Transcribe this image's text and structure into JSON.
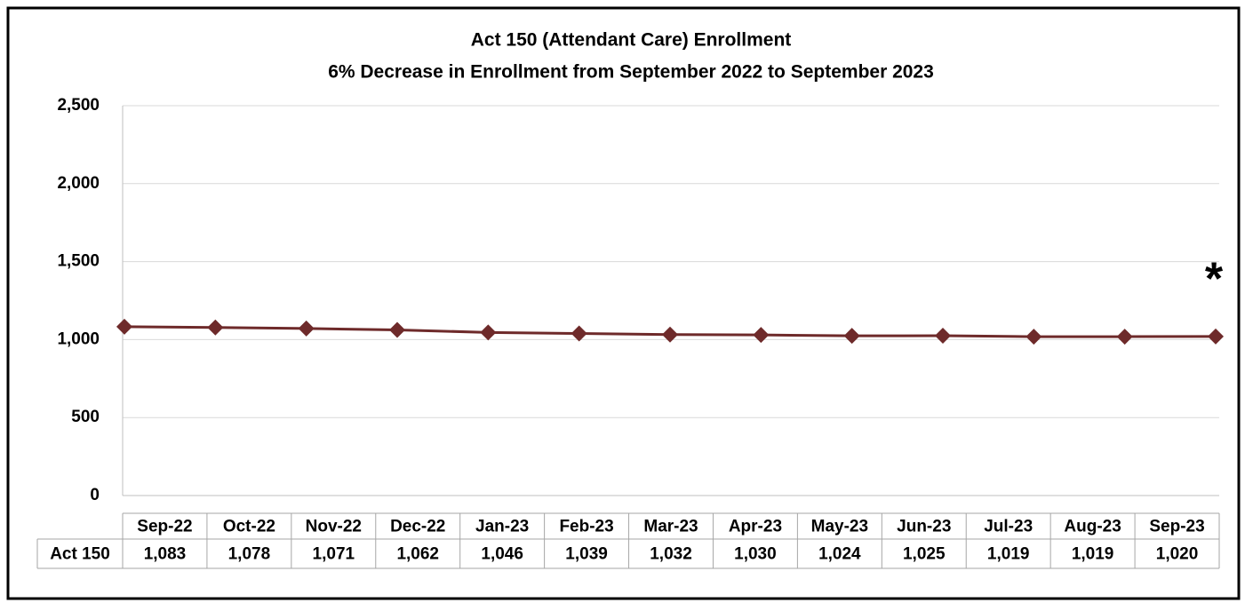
{
  "chart_data": {
    "type": "line",
    "title": "Act 150 (Attendant Care) Enrollment",
    "subtitle": "6% Decrease in Enrollment from September 2022 to September 2023",
    "categories": [
      "Sep-22",
      "Oct-22",
      "Nov-22",
      "Dec-22",
      "Jan-23",
      "Feb-23",
      "Mar-23",
      "Apr-23",
      "May-23",
      "Jun-23",
      "Jul-23",
      "Aug-23",
      "Sep-23"
    ],
    "series": [
      {
        "name": "Act 150",
        "color": "#6e2a2a",
        "values": [
          1083,
          1078,
          1071,
          1062,
          1046,
          1039,
          1032,
          1030,
          1024,
          1025,
          1019,
          1019,
          1020
        ],
        "value_labels": [
          "1,083",
          "1,078",
          "1,071",
          "1,062",
          "1,046",
          "1,039",
          "1,032",
          "1,030",
          "1,024",
          "1,025",
          "1,019",
          "1,019",
          "1,020"
        ]
      }
    ],
    "ylim": [
      0,
      2500
    ],
    "yticks": [
      0,
      500,
      {
        "value": 1000,
        "label": "1,000"
      },
      {
        "value": 1500,
        "label": "1,500"
      },
      {
        "value": 2000,
        "label": "2,000"
      },
      {
        "value": 2500,
        "label": "2,500"
      }
    ],
    "grid": true,
    "annotation": "*"
  }
}
